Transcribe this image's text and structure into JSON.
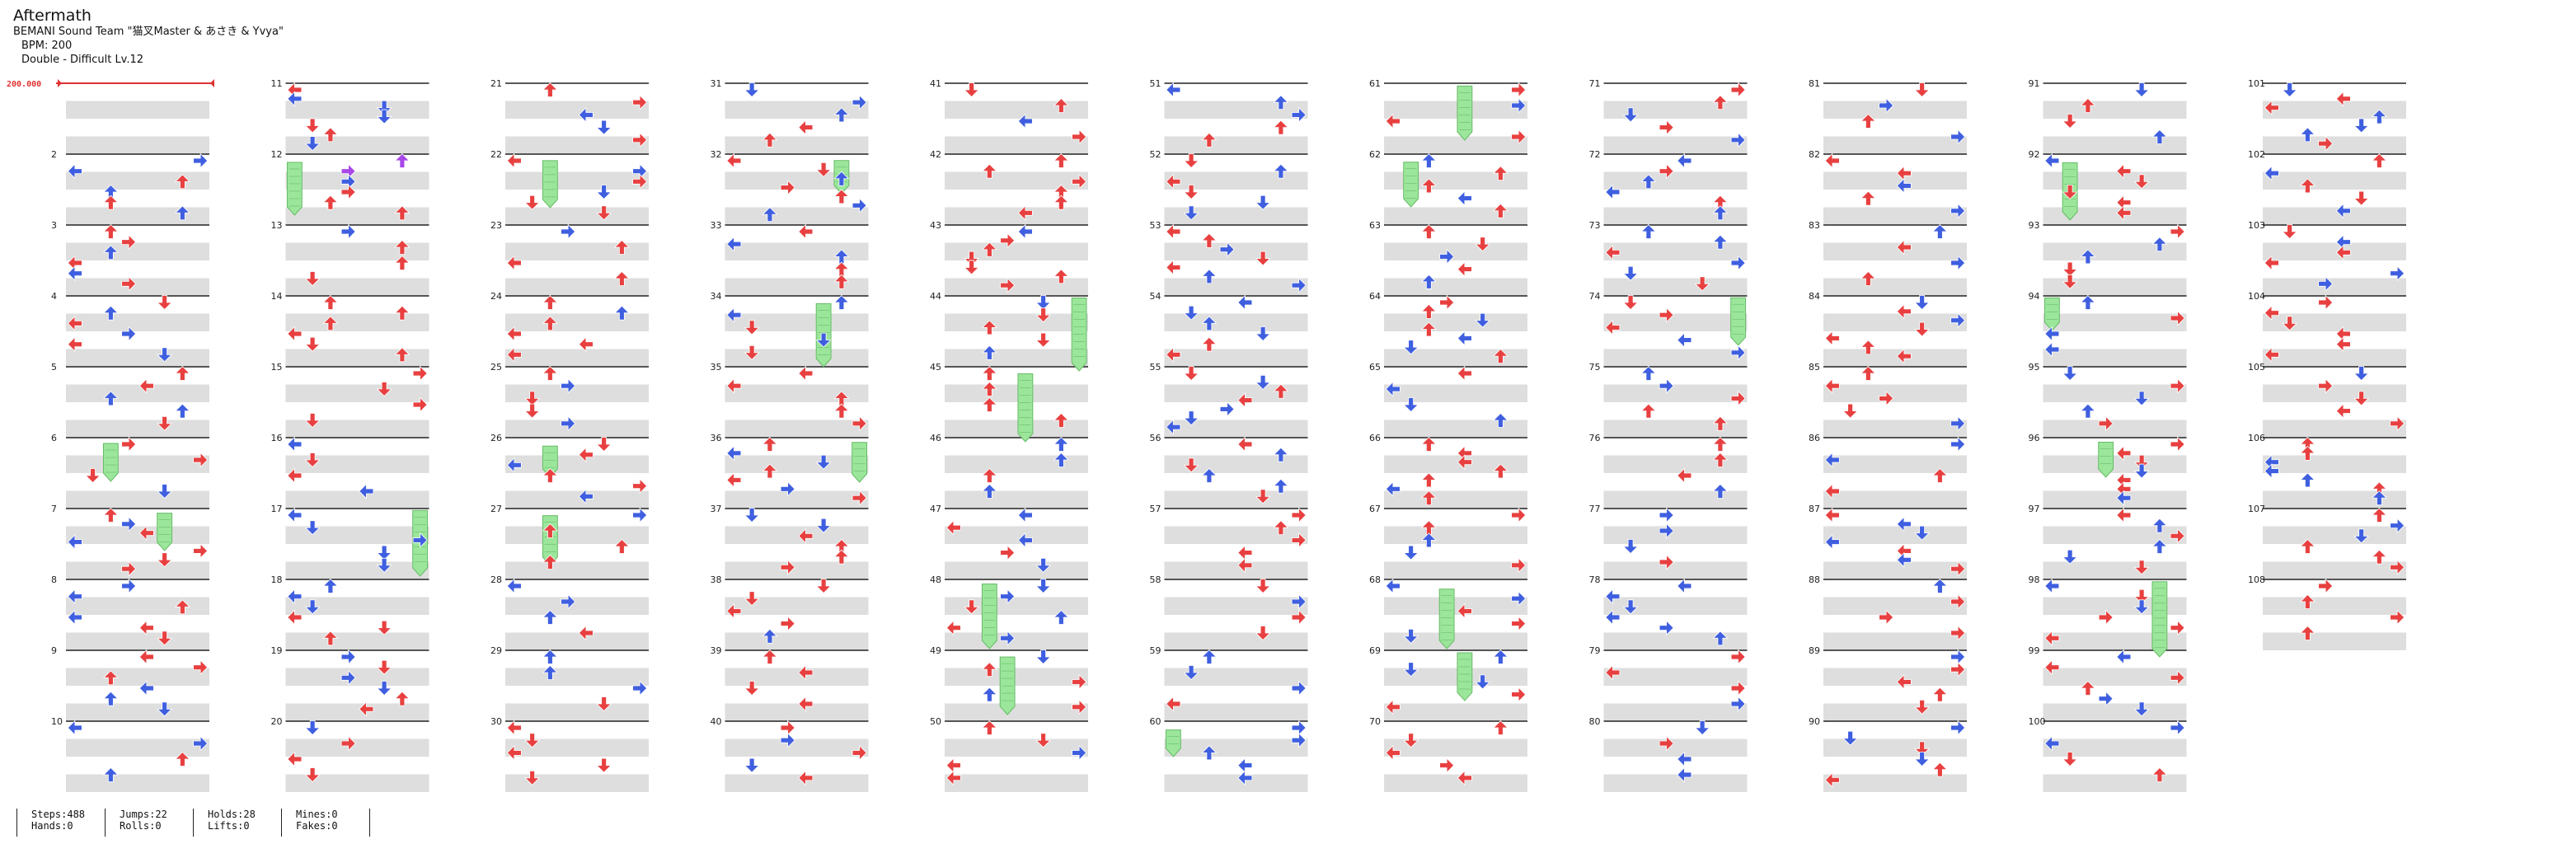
{
  "song": {
    "title": "Aftermath",
    "artist": "BEMANI Sound Team \"猫叉Master & あさき & Yvya\"",
    "bpm_label": "BPM: 200",
    "difficulty_label": "Double - Difficult  Lv.12"
  },
  "bpm_marker": {
    "value": "200.000",
    "color": "#e03030"
  },
  "chart": {
    "measure_count": 108,
    "measures_per_column": 10,
    "first_measure_label_start": 2,
    "lanes": 8,
    "arrow_directions": [
      "left",
      "down",
      "up",
      "right",
      "left",
      "down",
      "up",
      "right"
    ],
    "colors": {
      "quarter": "#e84040",
      "eighth": "#3f5fe0",
      "twelfth": "#a848e8",
      "hold_body": "#9be69b",
      "hold_border": "#66bb66",
      "stripe": "#dedede",
      "measure_line": "#222222"
    }
  },
  "stats": {
    "steps": "Steps:488",
    "hands": "Hands:0",
    "jumps": "Jumps:22",
    "rolls": "Rolls:0",
    "holds": "Holds:28",
    "lifts": "Lifts:0",
    "mines": "Mines:0",
    "fakes": "Fakes:0"
  }
}
